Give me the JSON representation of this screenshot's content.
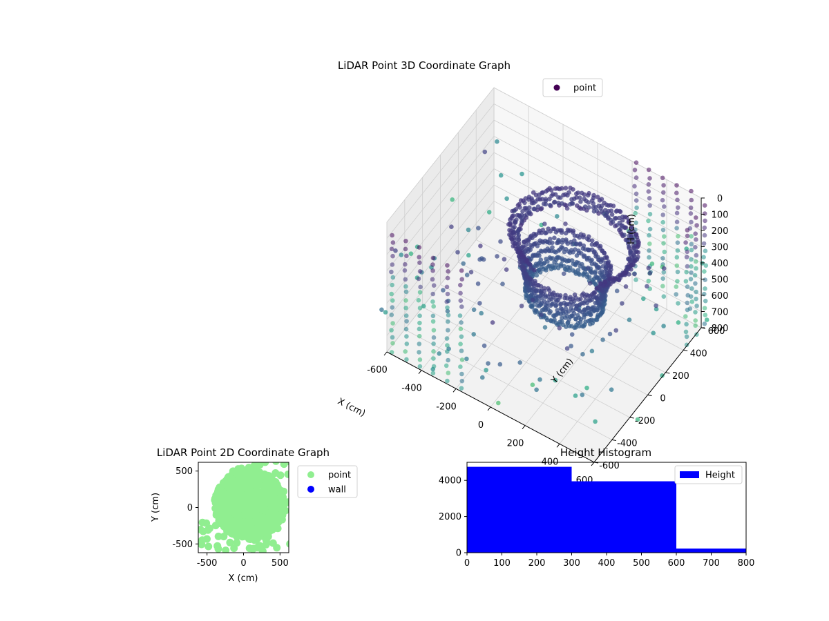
{
  "chart_data": [
    {
      "type": "scatter3d",
      "title": "LiDAR Point 3D Coordinate Graph",
      "xlabel": "X (cm)",
      "ylabel": "Y (cm)",
      "zlabel": "H (cm)",
      "xlim": [
        -600,
        600
      ],
      "ylim": [
        -600,
        600
      ],
      "zlim": [
        0,
        800
      ],
      "z_inverted": true,
      "xticks": [
        "-600",
        "-400",
        "-200",
        "0",
        "200",
        "400",
        "600"
      ],
      "yticks": [
        "-600",
        "-400",
        "-200",
        "0",
        "200",
        "400",
        "600"
      ],
      "zticks": [
        "0",
        "100",
        "200",
        "300",
        "400",
        "500",
        "600",
        "700",
        "800"
      ],
      "legend": {
        "entries": [
          "point"
        ],
        "placement": "top-right"
      },
      "colormap": "viridis",
      "grid": true,
      "series": [
        {
          "name": "point",
          "description_of_content": "dense ring-shaped wall of points plus scattered points",
          "rings": [
            {
              "cx": 80,
              "cy": 180,
              "r": 330,
              "h": 250
            },
            {
              "cx": 80,
              "cy": 180,
              "r": 310,
              "h": 275
            },
            {
              "cx": 80,
              "cy": 180,
              "r": 290,
              "h": 300
            },
            {
              "cx": 60,
              "cy": 120,
              "r": 230,
              "h": 380
            },
            {
              "cx": 60,
              "cy": 120,
              "r": 220,
              "h": 430
            },
            {
              "cx": 60,
              "cy": 120,
              "r": 210,
              "h": 480
            },
            {
              "cx": 60,
              "cy": 120,
              "r": 200,
              "h": 530
            },
            {
              "cx": 60,
              "cy": 120,
              "r": 200,
              "h": 580
            }
          ],
          "columns": [
            {
              "x": -560,
              "y": -620
            },
            {
              "x": -480,
              "y": -620
            },
            {
              "x": -400,
              "y": -620
            },
            {
              "x": -320,
              "y": -620
            },
            {
              "x": -240,
              "y": -620
            },
            {
              "x": -160,
              "y": -620
            },
            {
              "x": 200,
              "y": 640
            },
            {
              "x": 280,
              "y": 640
            },
            {
              "x": 360,
              "y": 640
            },
            {
              "x": 440,
              "y": 640
            },
            {
              "x": 520,
              "y": 640
            },
            {
              "x": 620,
              "y": 600
            },
            {
              "x": 620,
              "y": 500
            },
            {
              "x": 620,
              "y": 400
            }
          ]
        }
      ]
    },
    {
      "type": "scatter",
      "title": "LiDAR Point 2D Coordinate Graph",
      "xlabel": "X (cm)",
      "ylabel": "Y (cm)",
      "xlim": [
        -620,
        620
      ],
      "ylim": [
        -620,
        620
      ],
      "xticks": [
        "-500",
        "0",
        "500"
      ],
      "yticks": [
        "-500",
        "0",
        "500"
      ],
      "legend": {
        "entries": [
          "point",
          "wall"
        ],
        "placement": "outside-right"
      },
      "series": [
        {
          "name": "point",
          "color": "#90ee90"
        },
        {
          "name": "wall",
          "color": "#0000ff",
          "values": []
        }
      ]
    },
    {
      "type": "bar",
      "title": "Height Histogram",
      "xlim": [
        0,
        800
      ],
      "ylim": [
        0,
        5000
      ],
      "xticks": [
        "0",
        "100",
        "200",
        "300",
        "400",
        "500",
        "600",
        "700",
        "800"
      ],
      "yticks": [
        "0",
        "2000",
        "4000"
      ],
      "legend": {
        "entries": [
          "Height"
        ],
        "placement": "top-right"
      },
      "series": [
        {
          "name": "Height",
          "color": "#0000ff",
          "bins": [
            {
              "from": 0,
              "to": 300,
              "count": 4750
            },
            {
              "from": 300,
              "to": 600,
              "count": 3950
            },
            {
              "from": 600,
              "to": 800,
              "count": 230
            }
          ]
        }
      ]
    }
  ]
}
